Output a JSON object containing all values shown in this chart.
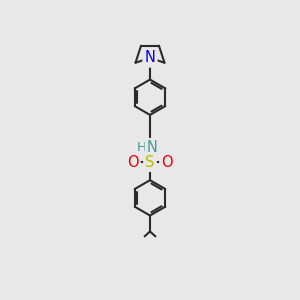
{
  "bg_color": "#e8e8e8",
  "bond_color": "#2a2a2a",
  "bond_width": 1.5,
  "atom_colors": {
    "N_pyrrolidine": "#0000ee",
    "N_sulfonamide": "#4a9999",
    "S": "#bbbb00",
    "O": "#ee0000",
    "H": "#4a9999",
    "C": "#2a2a2a"
  },
  "font_size_atom": 10.5,
  "font_size_h": 9.5,
  "canvas_xlim": [
    0,
    10
  ],
  "canvas_ylim": [
    0,
    12
  ]
}
